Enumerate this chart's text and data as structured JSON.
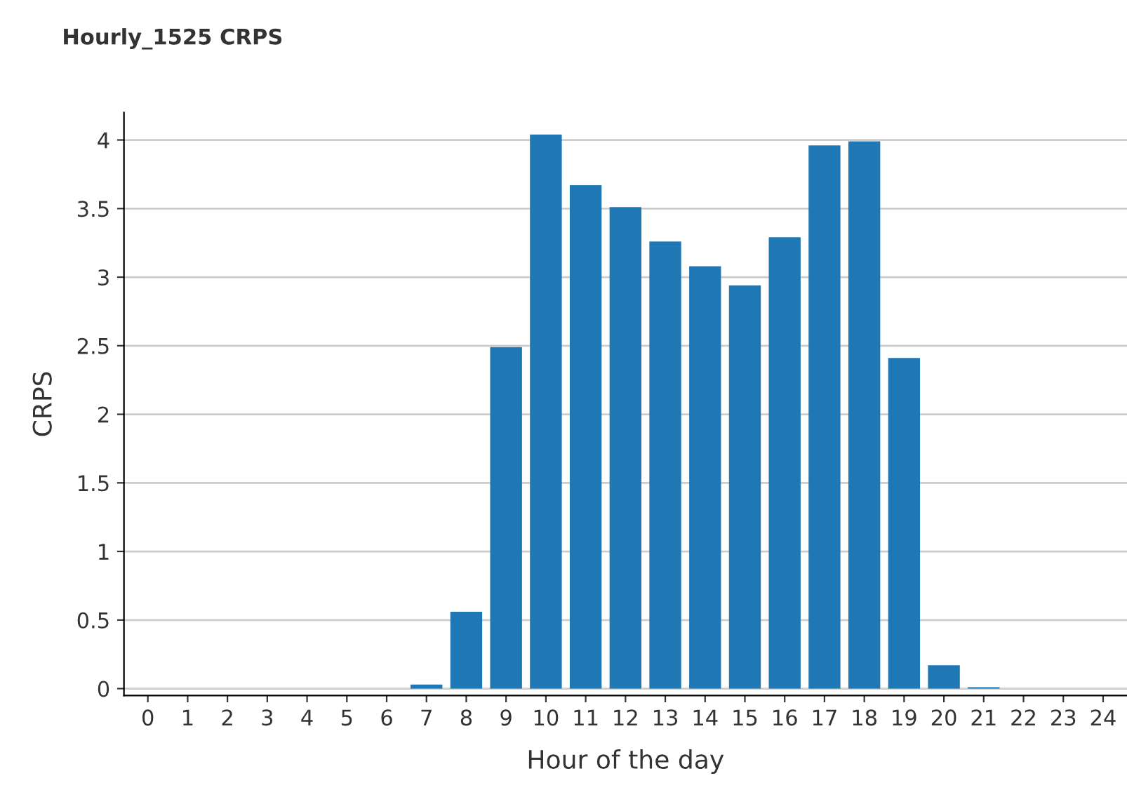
{
  "chart_data": {
    "type": "bar",
    "title": "Hourly_1525 CRPS",
    "xlabel": "Hour of the day",
    "ylabel": "CRPS",
    "categories": [
      "0",
      "1",
      "2",
      "3",
      "4",
      "5",
      "6",
      "7",
      "8",
      "9",
      "10",
      "11",
      "12",
      "13",
      "14",
      "15",
      "16",
      "17",
      "18",
      "19",
      "20",
      "21",
      "22",
      "23",
      "24"
    ],
    "values": [
      0,
      0,
      0,
      0,
      0,
      0,
      0,
      0.03,
      0.56,
      2.49,
      4.04,
      3.67,
      3.51,
      3.26,
      3.08,
      2.94,
      3.29,
      3.96,
      3.99,
      2.41,
      0.17,
      0.01,
      0,
      0,
      0
    ],
    "color": "#1f77b4",
    "ylim": [
      -0.05,
      4.2
    ],
    "yticks": [
      0,
      0.5,
      1,
      1.5,
      2,
      2.5,
      3,
      3.5,
      4
    ],
    "grid": "y",
    "legend": false
  }
}
